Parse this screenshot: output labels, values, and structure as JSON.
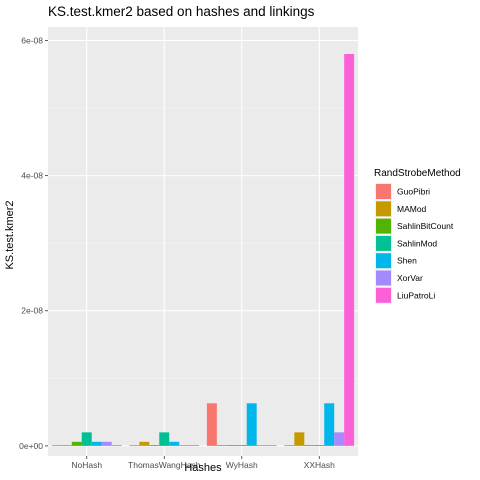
{
  "chart_data": {
    "type": "bar",
    "title": "KS.test.kmer2 based on hashes and linkings",
    "xlabel": "Hashes",
    "ylabel": "KS.test.kmer2",
    "categories": [
      "NoHash",
      "ThomasWangHash",
      "WyHash",
      "XXHash"
    ],
    "ylim": [
      -1.5e-09,
      6.2e-08
    ],
    "yticks": [
      0,
      2e-08,
      4e-08,
      6e-08
    ],
    "ytick_labels": [
      "0e+00",
      "2e-08",
      "4e-08",
      "6e-08"
    ],
    "grid": true,
    "legend": {
      "title": "RandStrobeMethod",
      "placement": "right"
    },
    "series": [
      {
        "name": "GuoPibri",
        "color": "#F8766D",
        "values": [
          1e-10,
          1e-10,
          6.3e-09,
          1e-10
        ]
      },
      {
        "name": "MAMod",
        "color": "#C49A00",
        "values": [
          1e-10,
          6e-10,
          1e-10,
          2e-09
        ]
      },
      {
        "name": "SahlinBitCount",
        "color": "#53B400",
        "values": [
          6e-10,
          1e-10,
          1e-10,
          1e-10
        ]
      },
      {
        "name": "SahlinMod",
        "color": "#00C094",
        "values": [
          2e-09,
          2e-09,
          1e-10,
          1e-10
        ]
      },
      {
        "name": "Shen",
        "color": "#00B6EB",
        "values": [
          6e-10,
          6e-10,
          6.3e-09,
          6.3e-09
        ]
      },
      {
        "name": "XorVar",
        "color": "#A58AFF",
        "values": [
          6e-10,
          1e-10,
          1e-10,
          2e-09
        ]
      },
      {
        "name": "LiuPatroLi",
        "color": "#FB61D7",
        "values": [
          1e-10,
          1e-10,
          1e-10,
          5.8e-08
        ]
      }
    ]
  }
}
